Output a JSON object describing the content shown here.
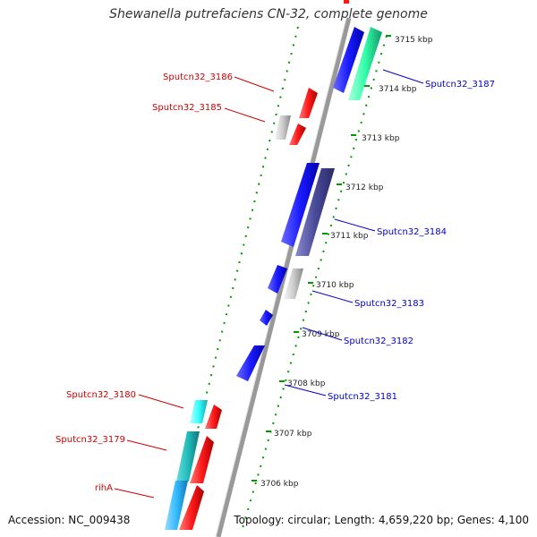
{
  "title": "Shewanella putrefaciens CN-32, complete genome",
  "footer": {
    "accession": "Accession: NC_009438",
    "stats": "Topology: circular; Length: 4,659,220 bp; Genes: 4,100"
  },
  "scale": {
    "unit": "kbp",
    "ticks": [
      {
        "kbp": 3715,
        "label": "3715 kbp"
      },
      {
        "kbp": 3714,
        "label": "3714 kbp"
      },
      {
        "kbp": 3713,
        "label": "3713 kbp"
      },
      {
        "kbp": 3712,
        "label": "3712 kbp"
      },
      {
        "kbp": 3711,
        "label": "3711 kbp"
      },
      {
        "kbp": 3710,
        "label": "3710 kbp"
      },
      {
        "kbp": 3709,
        "label": "3709 kbp"
      },
      {
        "kbp": 3708,
        "label": "3708 kbp"
      },
      {
        "kbp": 3707,
        "label": "3707 kbp"
      },
      {
        "kbp": 3706,
        "label": "3706 kbp"
      }
    ]
  },
  "genes": [
    {
      "label": "Sputcn32_3186",
      "strand": "-",
      "label_color": "#cc0000"
    },
    {
      "label": "Sputcn32_3185",
      "strand": "-",
      "label_color": "#cc0000"
    },
    {
      "label": "Sputcn32_3180",
      "strand": "-",
      "label_color": "#cc0000"
    },
    {
      "label": "Sputcn32_3179",
      "strand": "-",
      "label_color": "#cc0000"
    },
    {
      "label": "rihA",
      "strand": "-",
      "label_color": "#cc0000"
    },
    {
      "label": "Sputcn32_3187",
      "strand": "+",
      "label_color": "#0000cc"
    },
    {
      "label": "Sputcn32_3184",
      "strand": "+",
      "label_color": "#0000cc"
    },
    {
      "label": "Sputcn32_3183",
      "strand": "+",
      "label_color": "#0000cc"
    },
    {
      "label": "Sputcn32_3182",
      "strand": "+",
      "label_color": "#0000cc"
    },
    {
      "label": "Sputcn32_3181",
      "strand": "+",
      "label_color": "#0000cc"
    }
  ],
  "colors": {
    "forward_cds": "#1a1aff",
    "reverse_cds": "#ff1a1a",
    "backbone": "#888888",
    "tick_dots": "#009900",
    "highlight_teal": "#33ffaa",
    "highlight_purple": "#4a4a9a",
    "highlight_cyan": "#33ffff",
    "highlight_darkcyan": "#22bbbb",
    "highlight_sky": "#33bbff",
    "neutral_gray": "#cccccc"
  }
}
